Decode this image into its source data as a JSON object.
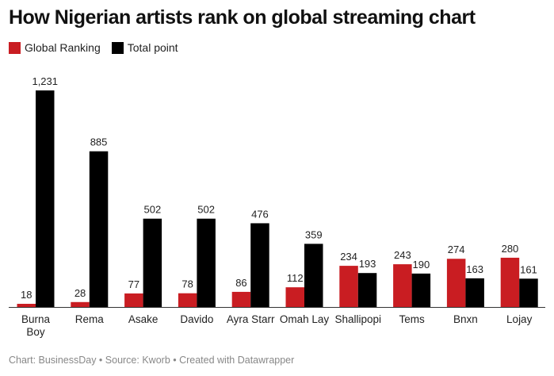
{
  "chart_data": {
    "type": "bar",
    "title": "How Nigerian artists rank on global streaming chart",
    "categories": [
      "Burna Boy",
      "Rema",
      "Asake",
      "Davido",
      "Ayra Starr",
      "Omah Lay",
      "Shallipopi",
      "Tems",
      "Bnxn",
      "Lojay"
    ],
    "series": [
      {
        "name": "Global Ranking",
        "color": "#c91d22",
        "values": [
          18,
          28,
          77,
          78,
          86,
          112,
          234,
          243,
          274,
          280
        ]
      },
      {
        "name": "Total point",
        "color": "#000000",
        "values": [
          1231,
          885,
          502,
          502,
          476,
          359,
          193,
          190,
          163,
          161
        ]
      }
    ],
    "ylim": [
      0,
      1231
    ],
    "grid": false,
    "legend_position": "top-left",
    "data_labels": true
  },
  "footer": "Chart: BusinessDay  • Source: Kworb • Created with Datawrapper"
}
